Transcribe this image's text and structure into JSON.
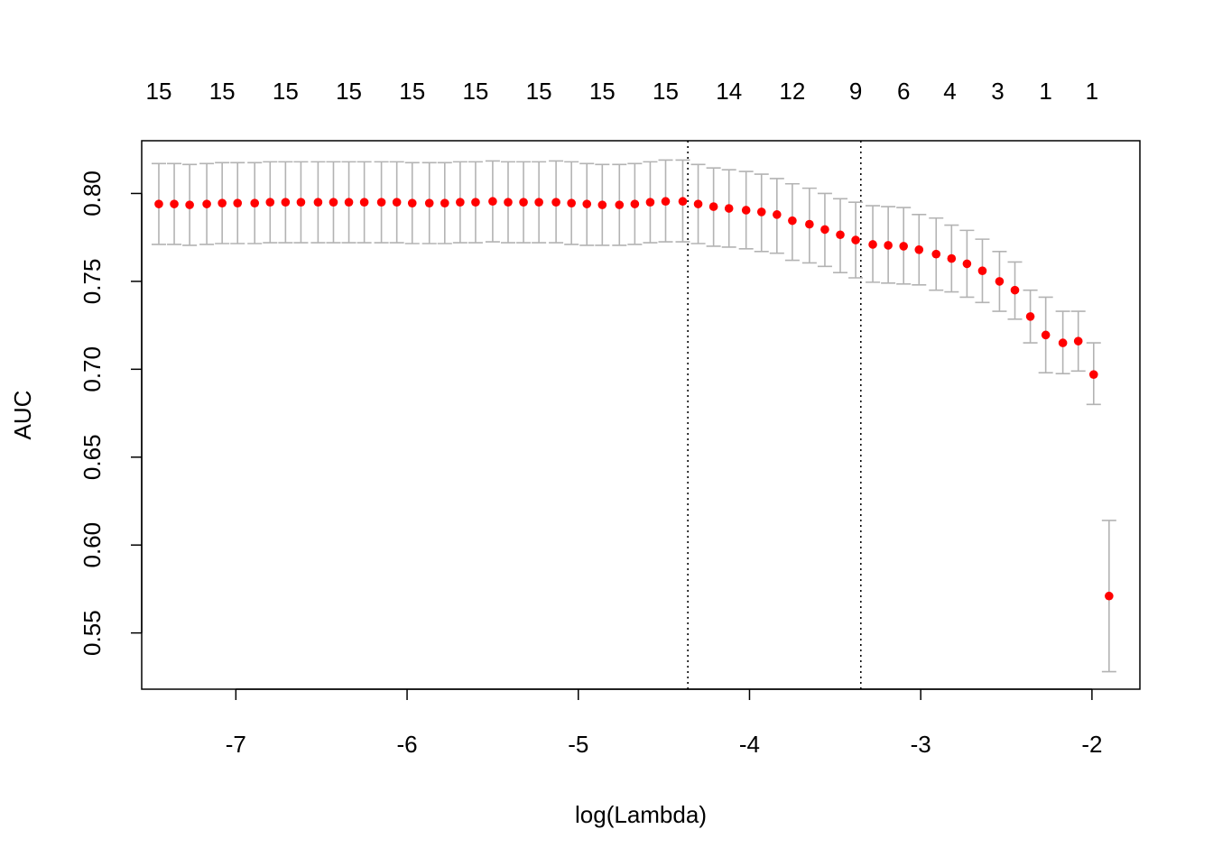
{
  "chart_data": {
    "type": "scatter",
    "xlabel": "log(Lambda)",
    "ylabel": "AUC",
    "xlim": [
      -7.55,
      -1.72
    ],
    "ylim": [
      0.518,
      0.83
    ],
    "x_ticks": [
      -7,
      -6,
      -5,
      -4,
      -3,
      -2
    ],
    "x_tick_labels": [
      "-7",
      "-6",
      "-5",
      "-4",
      "-3",
      "-2"
    ],
    "y_ticks": [
      0.55,
      0.6,
      0.65,
      0.7,
      0.75,
      0.8
    ],
    "y_tick_labels": [
      "0.55",
      "0.60",
      "0.65",
      "0.70",
      "0.75",
      "0.80"
    ],
    "top_axis": {
      "x": [
        -7.45,
        -7.08,
        -6.71,
        -6.34,
        -5.97,
        -5.6,
        -5.23,
        -4.86,
        -4.49,
        -4.12,
        -3.75,
        -3.38,
        -3.1,
        -2.83,
        -2.55,
        -2.27,
        -2.0
      ],
      "labels": [
        "15",
        "15",
        "15",
        "15",
        "15",
        "15",
        "15",
        "15",
        "15",
        "14",
        "12",
        "9",
        "6",
        "4",
        "3",
        "1",
        "1"
      ]
    },
    "vlines": [
      -4.36,
      -3.35
    ],
    "point_color": "#ff0000",
    "errorbar_color": "#b3b3b3",
    "series": [
      {
        "name": "AUC",
        "x": [
          -7.45,
          -7.36,
          -7.27,
          -7.17,
          -7.08,
          -6.99,
          -6.89,
          -6.8,
          -6.71,
          -6.62,
          -6.52,
          -6.43,
          -6.34,
          -6.25,
          -6.15,
          -6.06,
          -5.97,
          -5.87,
          -5.78,
          -5.69,
          -5.6,
          -5.5,
          -5.41,
          -5.32,
          -5.23,
          -5.13,
          -5.04,
          -4.95,
          -4.86,
          -4.76,
          -4.67,
          -4.58,
          -4.49,
          -4.39,
          -4.3,
          -4.21,
          -4.12,
          -4.02,
          -3.93,
          -3.84,
          -3.75,
          -3.65,
          -3.56,
          -3.47,
          -3.38,
          -3.28,
          -3.19,
          -3.1,
          -3.01,
          -2.91,
          -2.82,
          -2.73,
          -2.64,
          -2.54,
          -2.45,
          -2.36,
          -2.27,
          -2.17,
          -2.08,
          -1.99,
          -1.9
        ],
        "y": [
          0.794,
          0.794,
          0.7935,
          0.794,
          0.7945,
          0.7945,
          0.7945,
          0.795,
          0.795,
          0.795,
          0.795,
          0.795,
          0.795,
          0.795,
          0.795,
          0.795,
          0.7945,
          0.7945,
          0.7945,
          0.795,
          0.795,
          0.7955,
          0.795,
          0.795,
          0.795,
          0.795,
          0.7945,
          0.794,
          0.7935,
          0.7935,
          0.794,
          0.795,
          0.7955,
          0.7955,
          0.794,
          0.7925,
          0.7915,
          0.7905,
          0.7895,
          0.788,
          0.7845,
          0.7825,
          0.7795,
          0.7765,
          0.7735,
          0.771,
          0.7705,
          0.77,
          0.768,
          0.7655,
          0.763,
          0.76,
          0.756,
          0.75,
          0.745,
          0.73,
          0.7195,
          0.715,
          0.716,
          0.697,
          0.571
        ],
        "upper": [
          0.817,
          0.817,
          0.8165,
          0.817,
          0.8175,
          0.8175,
          0.8175,
          0.818,
          0.818,
          0.818,
          0.818,
          0.818,
          0.818,
          0.818,
          0.818,
          0.818,
          0.8175,
          0.8175,
          0.8175,
          0.818,
          0.818,
          0.8185,
          0.818,
          0.818,
          0.818,
          0.8185,
          0.818,
          0.817,
          0.8165,
          0.8165,
          0.817,
          0.818,
          0.819,
          0.819,
          0.8165,
          0.8145,
          0.8135,
          0.8125,
          0.811,
          0.8085,
          0.8055,
          0.803,
          0.8,
          0.797,
          0.795,
          0.793,
          0.7925,
          0.792,
          0.788,
          0.786,
          0.782,
          0.779,
          0.774,
          0.767,
          0.761,
          0.745,
          0.741,
          0.733,
          0.733,
          0.715,
          0.614
        ],
        "lower": [
          0.771,
          0.771,
          0.7705,
          0.771,
          0.7715,
          0.7715,
          0.7715,
          0.772,
          0.772,
          0.772,
          0.772,
          0.772,
          0.772,
          0.772,
          0.772,
          0.772,
          0.7715,
          0.7715,
          0.7715,
          0.772,
          0.772,
          0.7725,
          0.772,
          0.772,
          0.772,
          0.772,
          0.771,
          0.7705,
          0.7705,
          0.7705,
          0.771,
          0.772,
          0.7725,
          0.7725,
          0.7715,
          0.77,
          0.7695,
          0.7685,
          0.767,
          0.766,
          0.762,
          0.7605,
          0.7585,
          0.755,
          0.752,
          0.7495,
          0.749,
          0.7485,
          0.748,
          0.745,
          0.744,
          0.741,
          0.738,
          0.733,
          0.7285,
          0.715,
          0.698,
          0.6975,
          0.699,
          0.68,
          0.528
        ]
      }
    ]
  }
}
